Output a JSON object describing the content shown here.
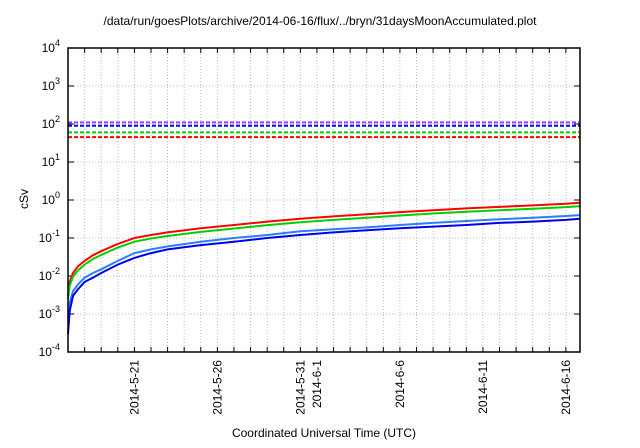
{
  "chart_data": {
    "type": "line",
    "title": "/data/run/goesPlots/archive/2014-06-16/flux/../bryn/31daysMoonAccumulated.plot",
    "xlabel": "Coordinated Universal Time (UTC)",
    "ylabel": "cSv",
    "yscale": "log",
    "ylim": [
      0.0001,
      10000
    ],
    "y_ticks": [
      {
        "base": "10",
        "exp": "-4",
        "value": 0.0001
      },
      {
        "base": "10",
        "exp": "-3",
        "value": 0.001
      },
      {
        "base": "10",
        "exp": "-2",
        "value": 0.01
      },
      {
        "base": "10",
        "exp": "-1",
        "value": 0.1
      },
      {
        "base": "10",
        "exp": "0",
        "value": 1
      },
      {
        "base": "10",
        "exp": "1",
        "value": 10
      },
      {
        "base": "10",
        "exp": "2",
        "value": 100
      },
      {
        "base": "10",
        "exp": "3",
        "value": 1000
      },
      {
        "base": "10",
        "exp": "4",
        "value": 10000
      }
    ],
    "x_unit": "days since 2014-5-17 00:00",
    "xlim": [
      0,
      30.85
    ],
    "x_ticks": [
      {
        "label": "2014-5-21",
        "day": 4
      },
      {
        "label": "2014-5-26",
        "day": 9
      },
      {
        "label": "2014-5-31",
        "day": 14
      },
      {
        "label": "2014-6-1",
        "day": 15
      },
      {
        "label": "2014-6-6",
        "day": 20
      },
      {
        "label": "2014-6-11",
        "day": 25
      },
      {
        "label": "2014-6-16",
        "day": 30
      }
    ],
    "grid": true,
    "thresholds": [
      {
        "color": "#a040ff",
        "value": 110
      },
      {
        "color": "#0000ff",
        "value": 90
      },
      {
        "color": "#00d000",
        "value": 60
      },
      {
        "color": "#ff0000",
        "value": 45
      }
    ],
    "x": [
      0,
      0.1,
      0.3,
      0.6,
      1,
      1.5,
      2,
      3,
      4,
      5,
      6,
      8,
      10,
      12,
      14,
      16,
      18,
      20,
      22,
      24,
      26,
      28,
      30,
      30.85
    ],
    "series": [
      {
        "name": "red",
        "color": "#ff0000",
        "values": [
          0.003,
          0.007,
          0.012,
          0.018,
          0.025,
          0.035,
          0.045,
          0.07,
          0.1,
          0.12,
          0.14,
          0.18,
          0.22,
          0.27,
          0.32,
          0.37,
          0.42,
          0.48,
          0.54,
          0.6,
          0.66,
          0.72,
          0.8,
          0.85
        ]
      },
      {
        "name": "green",
        "color": "#00d000",
        "values": [
          0.0025,
          0.0055,
          0.0095,
          0.014,
          0.02,
          0.028,
          0.036,
          0.056,
          0.08,
          0.097,
          0.113,
          0.145,
          0.178,
          0.218,
          0.26,
          0.3,
          0.34,
          0.39,
          0.44,
          0.49,
          0.54,
          0.59,
          0.65,
          0.69
        ]
      },
      {
        "name": "lightblue",
        "color": "#2a7fff",
        "values": [
          0.0008,
          0.002,
          0.004,
          0.006,
          0.009,
          0.012,
          0.015,
          0.025,
          0.04,
          0.05,
          0.06,
          0.08,
          0.1,
          0.12,
          0.15,
          0.17,
          0.19,
          0.22,
          0.25,
          0.28,
          0.31,
          0.34,
          0.38,
          0.4
        ]
      },
      {
        "name": "blue",
        "color": "#0000ee",
        "values": [
          0.0003,
          0.0012,
          0.003,
          0.0045,
          0.007,
          0.009,
          0.012,
          0.02,
          0.03,
          0.04,
          0.05,
          0.065,
          0.08,
          0.1,
          0.12,
          0.14,
          0.16,
          0.18,
          0.2,
          0.22,
          0.25,
          0.27,
          0.3,
          0.32
        ]
      }
    ]
  }
}
